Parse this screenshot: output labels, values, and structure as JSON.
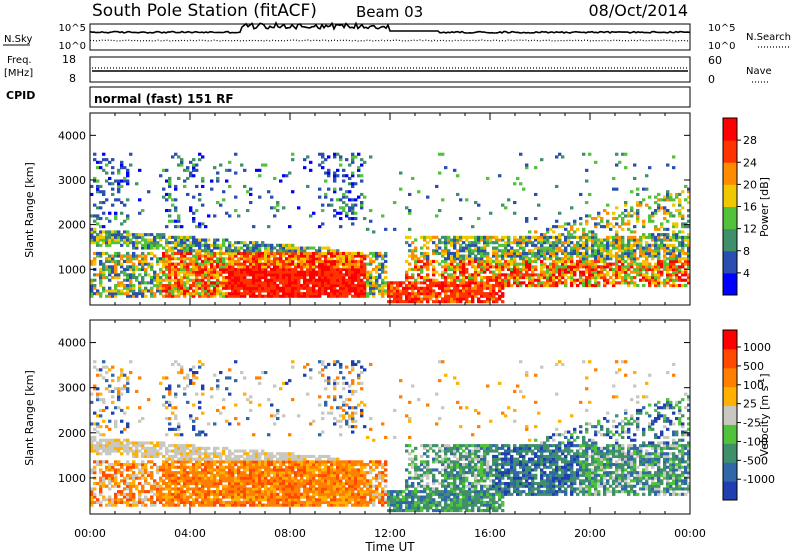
{
  "header": {
    "station": "South Pole Station (fitACF)",
    "beam": "Beam 03",
    "date": "08/Oct/2014"
  },
  "top_panel": {
    "left_label": "N.Sky",
    "right_label": "N.Search",
    "left_ticks": [
      "10^5",
      "10^0"
    ],
    "right_ticks": [
      "10^5",
      "10^0"
    ]
  },
  "freq_panel": {
    "label_line1": "Freq.",
    "label_line2": "[MHz]",
    "left_ticks": [
      "18",
      "8"
    ],
    "right_label": "Nave",
    "right_ticks": [
      "60",
      "0"
    ]
  },
  "cpid": {
    "label": "CPID",
    "text": "normal (fast) 151 RF"
  },
  "chart_data": [
    {
      "type": "heatmap",
      "quantity": "Power",
      "xlabel": "Time UT",
      "ylabel": "Slant Range [km]",
      "y_ticks": [
        "1000",
        "2000",
        "3000",
        "4000"
      ],
      "x_ticks": [
        "00:00",
        "04:00",
        "08:00",
        "12:00",
        "16:00",
        "20:00",
        "00:00"
      ],
      "colorbar_label": "Power [dB]",
      "colorbar_ticks": [
        "4",
        "8",
        "12",
        "16",
        "20",
        "24",
        "28"
      ],
      "colorbar_colors": [
        "#0000ff",
        "#2a4fb0",
        "#3f8f6a",
        "#52c23a",
        "#f0c800",
        "#ff8c00",
        "#ff3300",
        "#ff0000"
      ],
      "xlim_hours": [
        0,
        24
      ],
      "ylim_km": [
        200,
        4500
      ]
    },
    {
      "type": "heatmap",
      "quantity": "Velocity",
      "xlabel": "Time UT",
      "ylabel": "Slant Range [km]",
      "y_ticks": [
        "1000",
        "2000",
        "3000",
        "4000"
      ],
      "x_ticks": [
        "00:00",
        "04:00",
        "08:00",
        "12:00",
        "16:00",
        "20:00",
        "00:00"
      ],
      "colorbar_label": "Velocity [m s",
      "colorbar_label_sup": "-1",
      "colorbar_label_end": "]",
      "colorbar_ticks": [
        "1000",
        "500",
        "100",
        "25",
        "-25",
        "-100",
        "-500",
        "-1000"
      ],
      "colorbar_colors": [
        "#1f3fb0",
        "#2f67a8",
        "#3f8f6a",
        "#52c23a",
        "#c8c8c0",
        "#ffb000",
        "#ff7f00",
        "#ff4a00",
        "#ff0000"
      ],
      "xlim_hours": [
        0,
        24
      ],
      "ylim_km": [
        200,
        4500
      ]
    }
  ]
}
